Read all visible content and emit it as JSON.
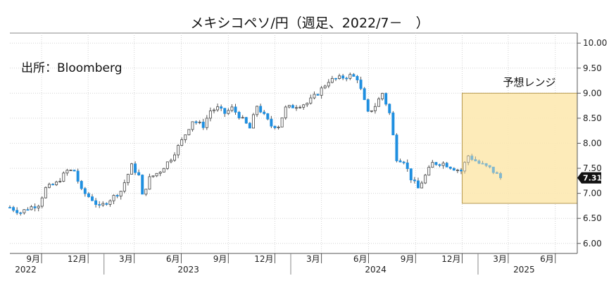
{
  "chart_data": {
    "type": "candlestick",
    "title": "メキシコペソ/円（週足、2022/7－　）",
    "source": "出所：Bloomberg",
    "range_label": "予想レンジ",
    "last_value_label": "7.31",
    "ylim": [
      5.8,
      10.2
    ],
    "y_ticks": [
      "10.00",
      "9.50",
      "9.00",
      "8.50",
      "8.00",
      "7.50",
      "7.00",
      "6.50",
      "6.00"
    ],
    "x_range": [
      "2022-07-01",
      "2025-07-14"
    ],
    "x_ticks": [
      {
        "label": "9月",
        "date": "2022-09-01"
      },
      {
        "label": "12月",
        "date": "2022-12-01"
      },
      {
        "label": "3月",
        "date": "2023-03-01"
      },
      {
        "label": "6月",
        "date": "2023-06-01"
      },
      {
        "label": "9月",
        "date": "2023-09-01"
      },
      {
        "label": "12月",
        "date": "2023-12-01"
      },
      {
        "label": "3月",
        "date": "2024-03-01"
      },
      {
        "label": "6月",
        "date": "2024-06-01"
      },
      {
        "label": "9月",
        "date": "2024-09-01"
      },
      {
        "label": "12月",
        "date": "2024-12-01"
      },
      {
        "label": "3月",
        "date": "2025-03-01"
      },
      {
        "label": "6月",
        "date": "2025-06-01"
      }
    ],
    "years": [
      {
        "label": "2022",
        "date": "2022-08-01"
      },
      {
        "label": "2023",
        "date": "2023-06-15"
      },
      {
        "label": "2024",
        "date": "2024-06-15"
      },
      {
        "label": "2025",
        "date": "2025-04-01"
      }
    ],
    "forecast_range": {
      "y_low": 6.8,
      "y_high": 9.0,
      "start": "2024-12-01",
      "end": "2025-07-14"
    },
    "colors": {
      "up": "#ffffff",
      "down": "#1f8fe0",
      "outline": "#444444",
      "wick": "#555555",
      "range_fill": "#fde9b2",
      "range_stroke": "#b09040",
      "last_label_bg": "#111111"
    },
    "anchors": [
      [
        "2022-07-01",
        6.72
      ],
      [
        "2022-07-22",
        6.62
      ],
      [
        "2022-08-05",
        6.7
      ],
      [
        "2022-08-26",
        6.78
      ],
      [
        "2022-09-09",
        7.1
      ],
      [
        "2022-09-30",
        7.2
      ],
      [
        "2022-10-21",
        7.45
      ],
      [
        "2022-11-04",
        7.45
      ],
      [
        "2022-11-18",
        7.05
      ],
      [
        "2022-12-09",
        6.88
      ],
      [
        "2022-12-23",
        6.72
      ],
      [
        "2023-01-13",
        6.88
      ],
      [
        "2023-02-03",
        7.05
      ],
      [
        "2023-02-24",
        7.55
      ],
      [
        "2023-03-10",
        7.35
      ],
      [
        "2023-03-17",
        6.95
      ],
      [
        "2023-03-31",
        7.3
      ],
      [
        "2023-04-21",
        7.45
      ],
      [
        "2023-05-12",
        7.7
      ],
      [
        "2023-06-02",
        8.05
      ],
      [
        "2023-06-23",
        8.45
      ],
      [
        "2023-07-14",
        8.35
      ],
      [
        "2023-07-28",
        8.65
      ],
      [
        "2023-08-11",
        8.7
      ],
      [
        "2023-08-25",
        8.6
      ],
      [
        "2023-09-08",
        8.7
      ],
      [
        "2023-09-22",
        8.55
      ],
      [
        "2023-10-13",
        8.3
      ],
      [
        "2023-10-27",
        8.75
      ],
      [
        "2023-11-10",
        8.55
      ],
      [
        "2023-11-24",
        8.35
      ],
      [
        "2023-12-08",
        8.35
      ],
      [
        "2023-12-22",
        8.7
      ],
      [
        "2024-01-12",
        8.75
      ],
      [
        "2024-02-02",
        8.8
      ],
      [
        "2024-02-23",
        9.0
      ],
      [
        "2024-03-15",
        9.25
      ],
      [
        "2024-04-05",
        9.3
      ],
      [
        "2024-04-26",
        9.35
      ],
      [
        "2024-05-10",
        9.3
      ],
      [
        "2024-05-31",
        8.6
      ],
      [
        "2024-06-14",
        8.75
      ],
      [
        "2024-06-28",
        9.0
      ],
      [
        "2024-07-12",
        8.6
      ],
      [
        "2024-07-26",
        7.7
      ],
      [
        "2024-08-09",
        7.65
      ],
      [
        "2024-08-23",
        7.3
      ],
      [
        "2024-09-06",
        7.1
      ],
      [
        "2024-09-20",
        7.35
      ],
      [
        "2024-10-04",
        7.6
      ],
      [
        "2024-10-25",
        7.6
      ],
      [
        "2024-11-15",
        7.5
      ],
      [
        "2024-11-29",
        7.45
      ],
      [
        "2024-12-13",
        7.75
      ],
      [
        "2025-01-03",
        7.6
      ],
      [
        "2025-01-24",
        7.5
      ],
      [
        "2025-02-14",
        7.31
      ]
    ]
  }
}
